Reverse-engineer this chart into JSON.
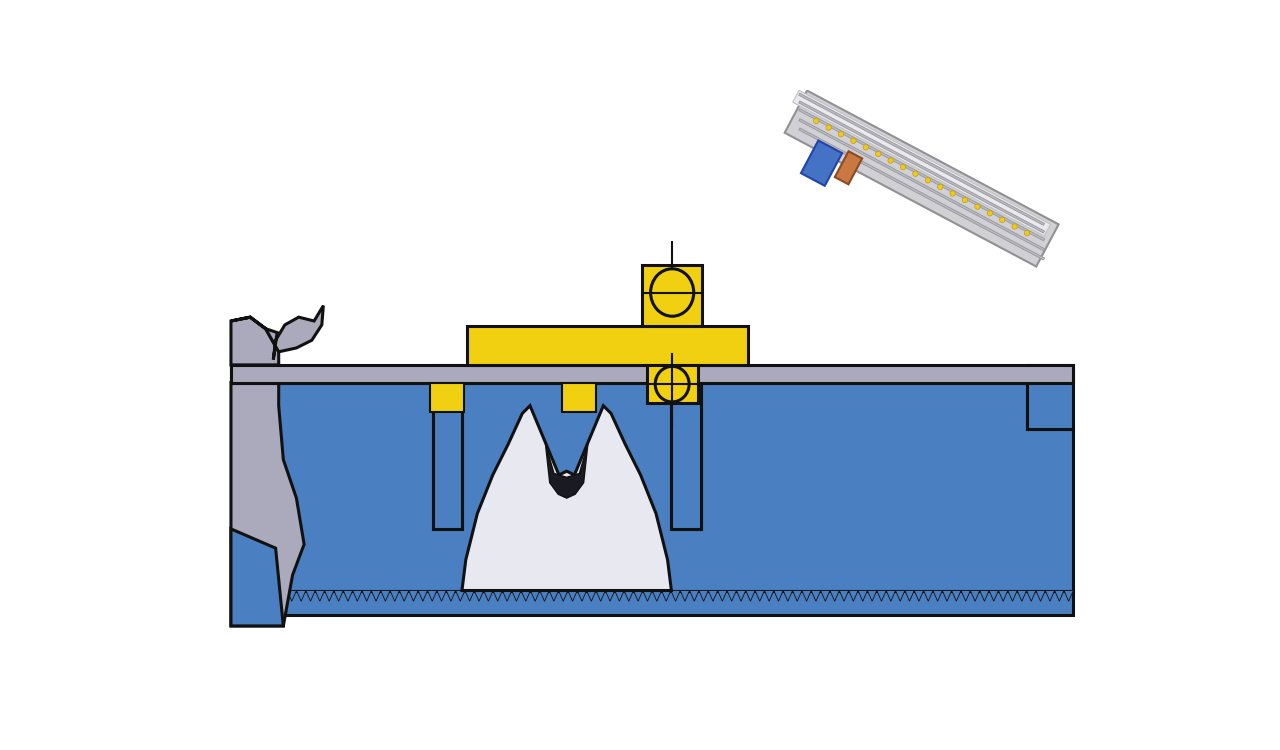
{
  "bg_color": "#ffffff",
  "blue": "#4a7fc1",
  "blue_dark": "#3a6fb1",
  "gray": "#aaaabc",
  "gray_dark": "#888898",
  "gray_light": "#ccccdd",
  "yellow": "#f0d010",
  "black": "#111111",
  "tir_fill": "#e8e8f0",
  "tir_dark": "#c8c8d8",
  "white": "#ffffff"
}
